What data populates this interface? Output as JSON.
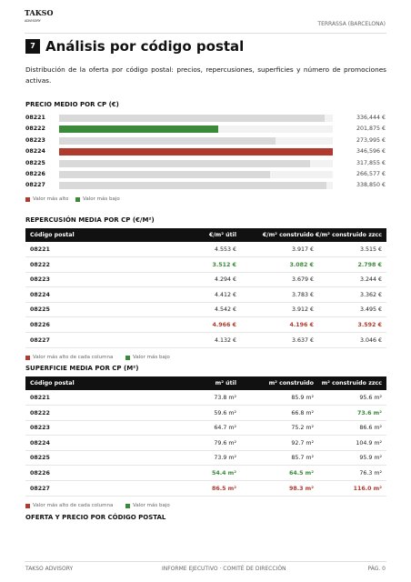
{
  "header": {
    "logo_top": "TAKSO",
    "logo_bottom": "ADVISORY",
    "location": "TERRASSA (BARCELONA)"
  },
  "section": {
    "number": "7",
    "title": "Análisis por código postal"
  },
  "intro": "Distribución de la oferta por código postal: precios, repercusiones, superficies y número de promociones activas.",
  "price_chart": {
    "type": "bar",
    "title": "PRECIO MEDIO POR CP (€)",
    "categories": [
      "08221",
      "08222",
      "08223",
      "08224",
      "08225",
      "08226",
      "08227"
    ],
    "values": [
      336444,
      201875,
      273995,
      346596,
      317855,
      266577,
      338850
    ],
    "value_labels": [
      "336,444 €",
      "201,875 €",
      "273,995 €",
      "346,596 €",
      "317,855 €",
      "266,577 €",
      "338,850 €"
    ],
    "colors": [
      "#d9d9d9",
      "#3a8a3a",
      "#d9d9d9",
      "#b03a2e",
      "#d9d9d9",
      "#d9d9d9",
      "#d9d9d9"
    ],
    "xlim": [
      0,
      346596
    ],
    "legend": [
      {
        "name": "Valor más alto",
        "color": "#b03a2e"
      },
      {
        "name": "Valor más bajo",
        "color": "#3a8a3a"
      }
    ]
  },
  "tables": [
    {
      "title": "REPERCUSIÓN MEDIA POR CP (€/M²)",
      "columns": [
        "Código postal",
        "€/m² útil",
        "€/m² construido",
        "€/m² construido zzcc"
      ],
      "rows": [
        [
          "08221",
          "4.553 €",
          "3.917 €",
          "3.515 €"
        ],
        [
          "08222",
          "3.512 €",
          "3.082 €",
          "2.798 €"
        ],
        [
          "08223",
          "4.294 €",
          "3.679 €",
          "3.244 €"
        ],
        [
          "08224",
          "4.412 €",
          "3.783 €",
          "3.362 €"
        ],
        [
          "08225",
          "4.542 €",
          "3.912 €",
          "3.495 €"
        ],
        [
          "08226",
          "4.966 €",
          "4.196 €",
          "3.592 €"
        ],
        [
          "08227",
          "4.132 €",
          "3.637 €",
          "3.046 €"
        ]
      ],
      "highlight": {
        "high": [
          [
            5,
            1
          ],
          [
            5,
            2
          ],
          [
            5,
            3
          ]
        ],
        "low": [
          [
            1,
            1
          ],
          [
            1,
            2
          ],
          [
            1,
            3
          ]
        ]
      },
      "legend": [
        {
          "name": "Valor más alto de cada columna",
          "color": "#b03a2e"
        },
        {
          "name": "Valor más bajo",
          "color": "#3a8a3a"
        }
      ]
    },
    {
      "title": "SUPERFICIE MEDIA POR CP (M²)",
      "columns": [
        "Código postal",
        "m² útil",
        "m² construido",
        "m² construido zzcc"
      ],
      "rows": [
        [
          "08221",
          "73.8 m²",
          "85.9 m²",
          "95.6 m²"
        ],
        [
          "08222",
          "59.6 m²",
          "66.8 m²",
          "73.6 m²"
        ],
        [
          "08223",
          "64.7 m²",
          "75.2 m²",
          "86.6 m²"
        ],
        [
          "08224",
          "79.6 m²",
          "92.7 m²",
          "104.9 m²"
        ],
        [
          "08225",
          "73.9 m²",
          "85.7 m²",
          "95.9 m²"
        ],
        [
          "08226",
          "54.4 m²",
          "64.5 m²",
          "76.3 m²"
        ],
        [
          "08227",
          "86.5 m²",
          "98.3 m²",
          "116.0 m²"
        ]
      ],
      "highlight": {
        "high": [
          [
            6,
            1
          ],
          [
            6,
            2
          ],
          [
            6,
            3
          ]
        ],
        "low": [
          [
            5,
            1
          ],
          [
            5,
            2
          ],
          [
            1,
            3
          ]
        ]
      },
      "legend": [
        {
          "name": "Valor más alto de cada columna",
          "color": "#b03a2e"
        },
        {
          "name": "Valor más bajo",
          "color": "#3a8a3a"
        }
      ]
    }
  ],
  "next_heading": "OFERTA Y PRECIO POR CÓDIGO POSTAL",
  "footer": {
    "left": "TAKSO ADVISORY",
    "center": "INFORME EJECUTIVO · COMITÉ DE DIRECCIÓN",
    "right": "PÁG. 0"
  }
}
